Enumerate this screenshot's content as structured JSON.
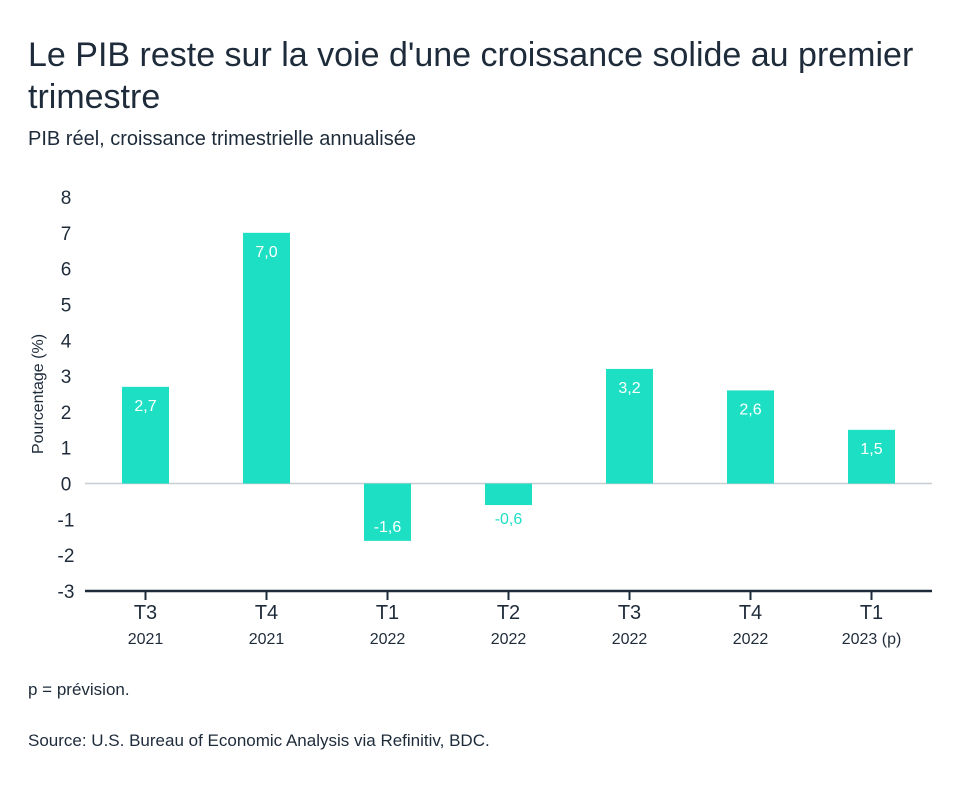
{
  "title": "Le PIB reste sur la voie d'une croissance solide au premier trimestre",
  "subtitle": "PIB réel, croissance trimestrielle annualisée",
  "note": "p = prévision.",
  "source": "Source: U.S. Bureau of Economic Analysis via Refinitiv, BDC.",
  "chart_data": {
    "type": "bar",
    "categories": [
      {
        "quarter": "T3",
        "year": "2021"
      },
      {
        "quarter": "T4",
        "year": "2021"
      },
      {
        "quarter": "T1",
        "year": "2022"
      },
      {
        "quarter": "T2",
        "year": "2022"
      },
      {
        "quarter": "T3",
        "year": "2022"
      },
      {
        "quarter": "T4",
        "year": "2022"
      },
      {
        "quarter": "T1",
        "year": "2023 (p)"
      }
    ],
    "values": [
      2.7,
      7.0,
      -1.6,
      -0.6,
      3.2,
      2.6,
      1.5
    ],
    "value_labels": [
      "2,7",
      "7,0",
      "-1,6",
      "-0,6",
      "3,2",
      "2,6",
      "1,5"
    ],
    "ylabel": "Pourcentage (%)",
    "ylim": [
      -3,
      8
    ],
    "yticks": [
      8,
      7,
      6,
      5,
      4,
      3,
      2,
      1,
      0,
      -1,
      -2,
      -3
    ],
    "grid": false,
    "bar_color": "#1ddfc4",
    "label_color_inside": "#ffffff",
    "label_color_outside": "#1ddfc4",
    "axis_color": "#1e2b3a"
  }
}
